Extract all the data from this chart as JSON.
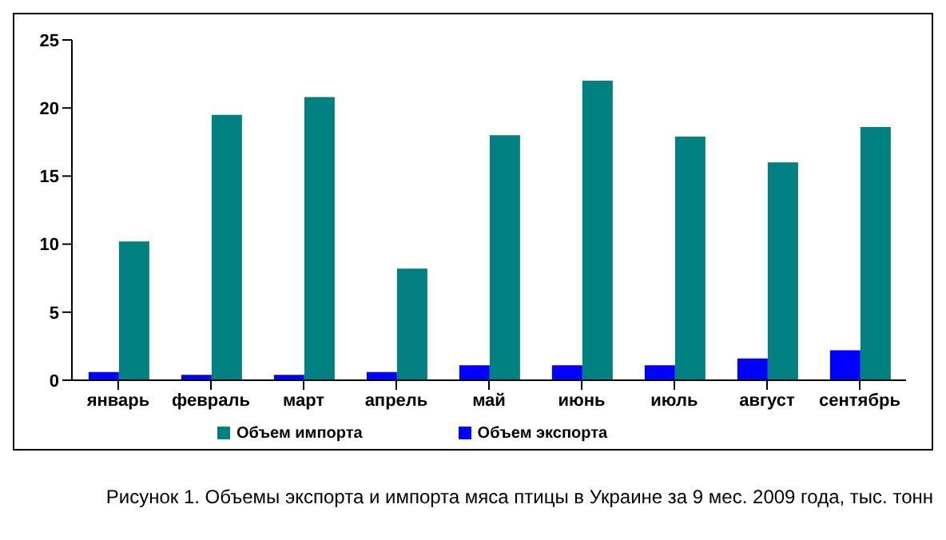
{
  "chart_data": {
    "type": "bar",
    "categories": [
      "январь",
      "февраль",
      "март",
      "апрель",
      "май",
      "июнь",
      "июль",
      "август",
      "сентябрь"
    ],
    "series": [
      {
        "name": "Объем экспорта",
        "color": "#0000ff",
        "values": [
          0.6,
          0.4,
          0.4,
          0.6,
          1.1,
          1.1,
          1.1,
          1.6,
          2.2
        ]
      },
      {
        "name": "Объем импорта",
        "color": "#008080",
        "values": [
          10.2,
          19.5,
          20.8,
          8.2,
          18.0,
          22.0,
          17.9,
          16.0,
          18.6
        ]
      }
    ],
    "ylim": [
      0,
      25
    ],
    "yticks": [
      0,
      5,
      10,
      15,
      20,
      25
    ],
    "grid": false,
    "legend": "bottom",
    "annotations": [
      "Рисунок 1. Объемы экспорта и импорта мяса птицы в Украине за 9 мес. 2009 года, тыс. тонн"
    ]
  }
}
